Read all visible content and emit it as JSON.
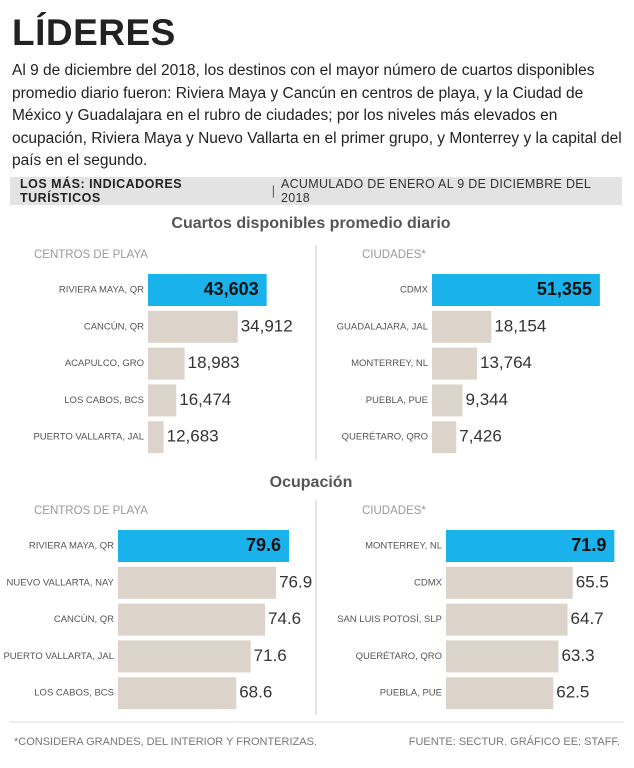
{
  "header": {
    "title": "LÍDERES",
    "intro": "Al 9 de diciembre del 2018, los destinos con el mayor número de cuartos disponibles promedio diario fueron: Riviera Maya y Cancún en centros de playa, y la Ciudad de México y Guadalajara en el rubro de ciudades; por los niveles más elevados en ocupación, Riviera Maya y Nuevo Vallarta en el primer grupo, y Monterrey y la capital del país en el segundo."
  },
  "section": {
    "title": "LOS MÁS: INDICADORES TURÍSTICOS",
    "subtitle": "ACUMULADO DE ENERO AL 9 DE DICIEMBRE DEL 2018"
  },
  "groups": [
    "Cuartos disponibles promedio diario",
    "Ocupación"
  ],
  "footer": {
    "note": "*CONSIDERA GRANDES, DEL INTERIOR Y FRONTERIZAS.",
    "source": "FUENTE: SECTUR. GRÁFICO EE: STAFF."
  },
  "chart_data": [
    {
      "type": "bar",
      "orientation": "horizontal",
      "subtitle": "CENTROS DE PLAYA",
      "categories": [
        "RIVIERA MAYA, QR",
        "CANCÚN, QR",
        "ACAPULCO, GRO",
        "LOS CABOS, BCS",
        "PUERTO VALLARTA, JAL"
      ],
      "values": [
        43603,
        34912,
        18983,
        16474,
        12683
      ],
      "value_labels": [
        "43,603",
        "34,912",
        "18,983",
        "16,474",
        "12,683"
      ],
      "colors": [
        "#19b2ea",
        "#dcd3cb",
        "#dcd3cb",
        "#dcd3cb",
        "#dcd3cb"
      ],
      "xlim": [
        8000,
        44000
      ]
    },
    {
      "type": "bar",
      "orientation": "horizontal",
      "subtitle": "CIUDADES*",
      "categories": [
        "CDMX",
        "GUADALAJARA, JAL",
        "MONTERREY, NL",
        "PUEBLA, PUE",
        "QUERÉTARO, QRO"
      ],
      "values": [
        51355,
        18154,
        13764,
        9344,
        7426
      ],
      "value_labels": [
        "51,355",
        "18,154",
        "13,764",
        "9,344",
        "7,426"
      ],
      "colors": [
        "#19b2ea",
        "#dcd3cb",
        "#dcd3cb",
        "#dcd3cb",
        "#dcd3cb"
      ],
      "xlim": [
        0,
        52000
      ]
    },
    {
      "type": "bar",
      "orientation": "horizontal",
      "subtitle": "CENTROS DE PLAYA",
      "categories": [
        "RIVIERA MAYA, QR",
        "NUEVO VALLARTA, NAY",
        "CANCÚN, QR",
        "PUERTO VALLARTA, JAL",
        "LOS CABOS, BCS"
      ],
      "values": [
        79.6,
        76.9,
        74.6,
        71.6,
        68.6
      ],
      "colors": [
        "#19b2ea",
        "#dcd3cb",
        "#dcd3cb",
        "#dcd3cb",
        "#dcd3cb"
      ],
      "xlim": [
        44,
        80
      ]
    },
    {
      "type": "bar",
      "orientation": "horizontal",
      "subtitle": "CIUDADES*",
      "categories": [
        "MONTERREY, NL",
        "CDMX",
        "SAN LUIS POTOSÍ, SLP",
        "QUERÉTARO, QRO",
        "PUEBLA, PUE"
      ],
      "values": [
        71.9,
        65.5,
        64.7,
        63.3,
        62.5
      ],
      "colors": [
        "#19b2ea",
        "#dcd3cb",
        "#dcd3cb",
        "#dcd3cb",
        "#dcd3cb"
      ],
      "xlim": [
        46,
        72
      ]
    }
  ]
}
